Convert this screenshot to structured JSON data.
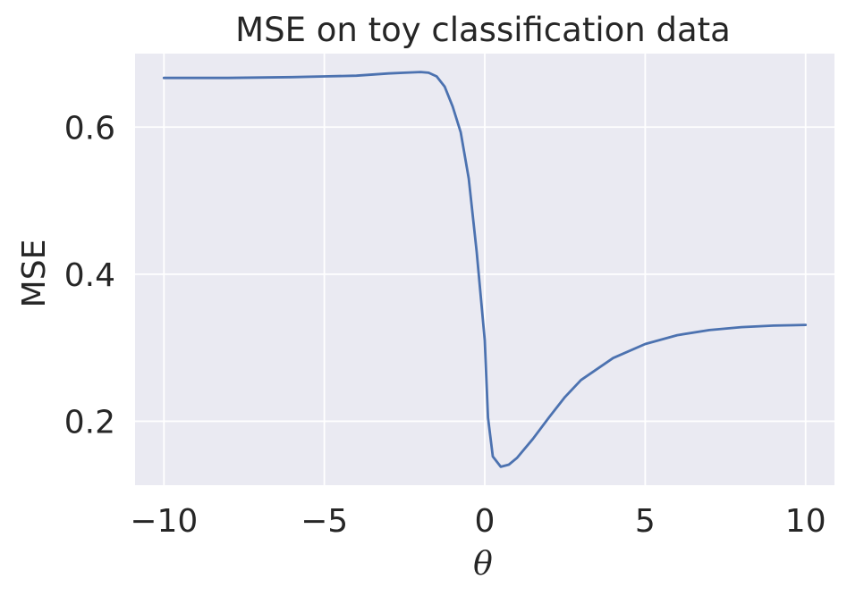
{
  "chart_data": {
    "type": "line",
    "title": "MSE on toy classification data",
    "xlabel": "θ",
    "ylabel": "MSE",
    "xlim": [
      -10.9,
      10.9
    ],
    "ylim": [
      0.113,
      0.7
    ],
    "xticks": [
      -10,
      -5,
      0,
      5,
      10
    ],
    "xtick_labels": [
      "−10",
      "−5",
      "0",
      "5",
      "10"
    ],
    "yticks": [
      0.2,
      0.4,
      0.6
    ],
    "ytick_labels": [
      "0.2",
      "0.4",
      "0.6"
    ],
    "grid": true,
    "background": "#eaeaf2",
    "series": [
      {
        "color": "#4c72b0",
        "x": [
          -10,
          -8,
          -6,
          -5,
          -4,
          -3,
          -2.5,
          -2,
          -1.75,
          -1.5,
          -1.25,
          -1,
          -0.75,
          -0.5,
          -0.25,
          0,
          0.1,
          0.25,
          0.5,
          0.75,
          1,
          1.5,
          2,
          2.5,
          3,
          4,
          5,
          6,
          7,
          8,
          9,
          10
        ],
        "y": [
          0.667,
          0.667,
          0.668,
          0.669,
          0.67,
          0.673,
          0.674,
          0.675,
          0.674,
          0.669,
          0.655,
          0.628,
          0.593,
          0.53,
          0.43,
          0.31,
          0.205,
          0.152,
          0.138,
          0.141,
          0.15,
          0.176,
          0.205,
          0.233,
          0.256,
          0.286,
          0.305,
          0.317,
          0.324,
          0.328,
          0.33,
          0.331
        ]
      }
    ]
  }
}
